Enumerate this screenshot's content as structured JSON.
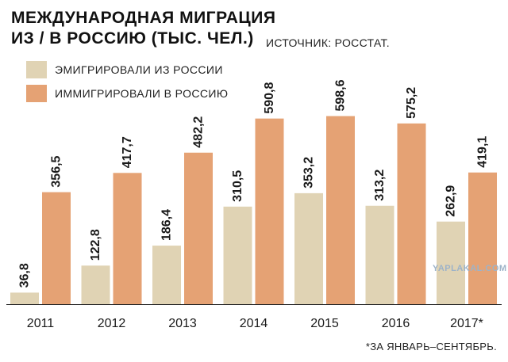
{
  "title_line1": "МЕЖДУНАРОДНАЯ МИГРАЦИЯ",
  "title_line2": "ИЗ / В РОССИЮ (ТЫС. ЧЕЛ.)",
  "source": "ИСТОЧНИК: РОССТАТ.",
  "footnote": "*ЗА ЯНВАРЬ–СЕНТЯБРЬ.",
  "watermark": "YAPLAKAL.COM",
  "colors": {
    "emigrated": "#e0d3b4",
    "immigrated": "#e5a274"
  },
  "chart_data": {
    "type": "bar",
    "title": "МЕЖДУНАРОДНАЯ МИГРАЦИЯ ИЗ / В РОССИЮ (ТЫС. ЧЕЛ.)",
    "categories": [
      "2011",
      "2012",
      "2013",
      "2014",
      "2015",
      "2016",
      "2017*"
    ],
    "series": [
      {
        "name": "ЭМИГРИРОВАЛИ ИЗ РОССИИ",
        "values": [
          36.8,
          122.8,
          186.4,
          310.5,
          353.2,
          313.2,
          262.9
        ],
        "labels": [
          "36,8",
          "122,8",
          "186,4",
          "310,5",
          "353,2",
          "313,2",
          "262,9"
        ]
      },
      {
        "name": "ИММИГРИРОВАЛИ В РОССИЮ",
        "values": [
          356.5,
          417.7,
          482.2,
          590.8,
          598.6,
          575.2,
          419.1
        ],
        "labels": [
          "356,5",
          "417,7",
          "482,2",
          "590,8",
          "598,6",
          "575,2",
          "419,1"
        ]
      }
    ],
    "xlabel": "",
    "ylabel": "",
    "ylim": [
      0,
      600
    ],
    "grid": false,
    "legend": "top-left"
  }
}
